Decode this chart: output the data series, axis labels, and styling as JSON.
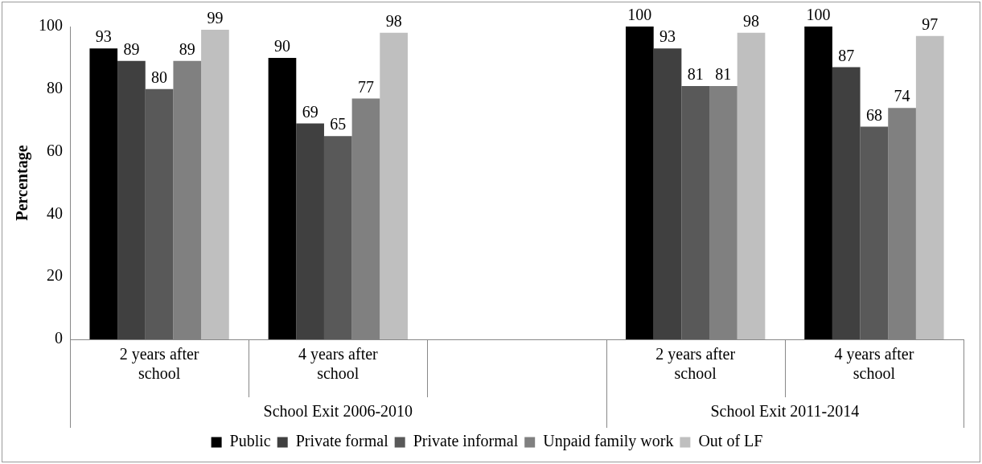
{
  "chart_data": {
    "type": "bar",
    "ylabel": "Percentage",
    "categories": [
      "2 years after school",
      "4 years after school",
      null,
      "2 years after school",
      "4 years after school"
    ],
    "series": [
      {
        "name": "Public",
        "color": "#000000",
        "values": [
          93,
          90,
          null,
          100,
          100
        ]
      },
      {
        "name": "Private formal",
        "color": "#404040",
        "values": [
          89,
          69,
          null,
          93,
          87
        ]
      },
      {
        "name": "Private informal",
        "color": "#595959",
        "values": [
          80,
          65,
          null,
          81,
          68
        ]
      },
      {
        "name": "Unpaid family work",
        "color": "#808080",
        "values": [
          89,
          77,
          null,
          81,
          74
        ]
      },
      {
        "name": "Out of LF",
        "color": "#bfbfbf",
        "values": [
          99,
          98,
          null,
          98,
          97
        ]
      }
    ],
    "ylim": [
      0,
      100
    ],
    "yticks": [
      0,
      20,
      40,
      60,
      80,
      100
    ],
    "grid": false,
    "legend": "bottom",
    "data_labels": true,
    "annotations": [
      "School Exit 2006-2010",
      "School Exit 2011-2014"
    ]
  }
}
